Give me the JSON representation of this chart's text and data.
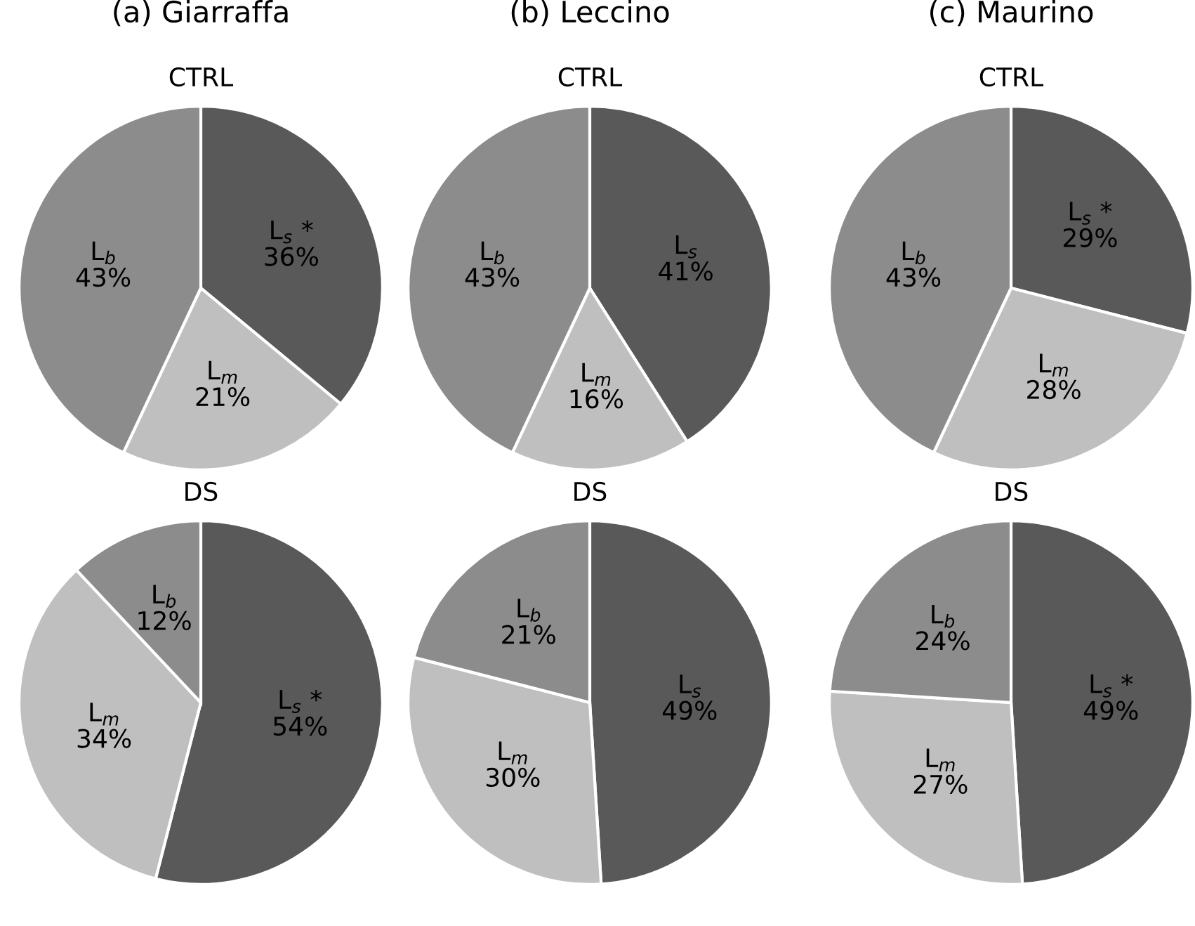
{
  "chart_data": [
    {
      "type": "pie",
      "title": "(a) Giarraffa",
      "subtitle": "CTRL",
      "categories": [
        "L$_{s}$ *",
        "L$_{m}$",
        "L$_{b}$"
      ],
      "values": [
        36,
        21,
        43
      ],
      "value_labels": [
        "36%",
        "21%",
        "43%"
      ],
      "colors": [
        "#595959",
        "#bfbfbf",
        "#8c8c8c"
      ]
    },
    {
      "type": "pie",
      "title": "(b) Leccino",
      "subtitle": "CTRL",
      "categories": [
        "L$_{s}$",
        "L$_{m}$",
        "L$_{b}$"
      ],
      "values": [
        41,
        16,
        43
      ],
      "value_labels": [
        "41%",
        "16%",
        "43%"
      ],
      "colors": [
        "#595959",
        "#bfbfbf",
        "#8c8c8c"
      ]
    },
    {
      "type": "pie",
      "title": "(c) Maurino",
      "subtitle": "CTRL",
      "categories": [
        "L$_{s}$ *",
        "L$_{m}$",
        "L$_{b}$"
      ],
      "values": [
        29,
        28,
        43
      ],
      "value_labels": [
        "29%",
        "28%",
        "43%"
      ],
      "colors": [
        "#595959",
        "#bfbfbf",
        "#8c8c8c"
      ]
    },
    {
      "type": "pie",
      "title": "DS",
      "categories": [
        "L$_{s}$ *",
        "L$_{m}$",
        "L$_{b}$"
      ],
      "values": [
        54,
        34,
        12
      ],
      "value_labels": [
        "54%",
        "34%",
        "12%"
      ],
      "colors": [
        "#595959",
        "#bfbfbf",
        "#8c8c8c"
      ]
    },
    {
      "type": "pie",
      "title": "DS",
      "categories": [
        "L$_{s}$",
        "L$_{m}$",
        "L$_{b}$"
      ],
      "values": [
        49,
        30,
        21
      ],
      "value_labels": [
        "49%",
        "30%",
        "21%"
      ],
      "colors": [
        "#595959",
        "#bfbfbf",
        "#8c8c8c"
      ]
    },
    {
      "type": "pie",
      "title": "DS",
      "categories": [
        "L$_{s}$ *",
        "L$_{m}$",
        "L$_{b}$"
      ],
      "values": [
        49,
        27,
        24
      ],
      "value_labels": [
        "49%",
        "27%",
        "24%"
      ],
      "colors": [
        "#595959",
        "#bfbfbf",
        "#8c8c8c"
      ]
    }
  ]
}
